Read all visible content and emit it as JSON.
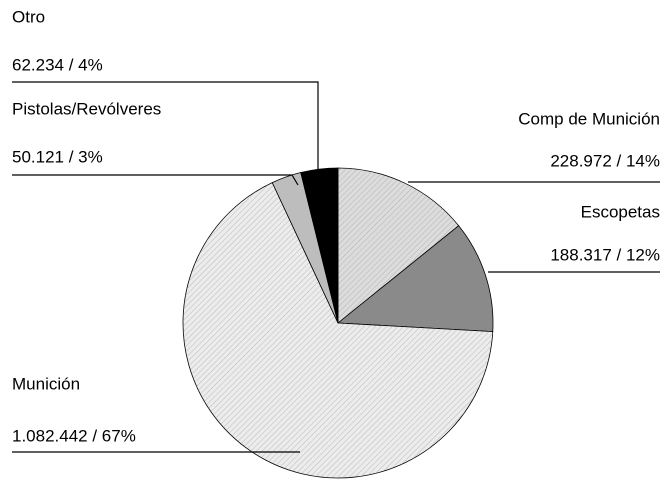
{
  "chart_data": {
    "type": "pie",
    "categories": [
      "Comp de Munición",
      "Escopetas",
      "Munición",
      "Pistolas/Revólveres",
      "Otro"
    ],
    "values": [
      228972,
      188317,
      1082442,
      50121,
      62234
    ],
    "value_labels": [
      "228.972 / 14%",
      "188.317 / 12%",
      "1.082.442 / 67%",
      "50.121 / 3%",
      "62.234 / 4%"
    ],
    "colors": [
      "#dcdcdc",
      "#8a8a8a",
      "#ececec",
      "#bdbdbd",
      "#000000"
    ]
  }
}
